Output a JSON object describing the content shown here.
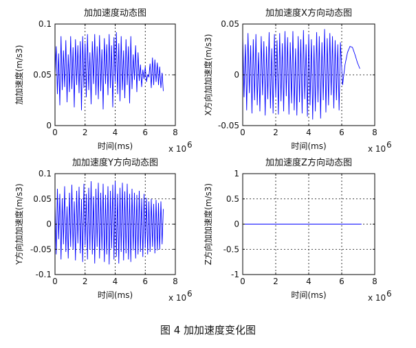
{
  "figure": {
    "caption": "图 4  加加速度变化图",
    "line_color": "#0000ff",
    "axis_color": "#000000",
    "grid_style": "dashed",
    "x_multiplier_base": "x 10",
    "x_multiplier_exp": "6"
  },
  "chart_data": [
    {
      "type": "line",
      "title": "加加速度动态图",
      "xlabel": "时间(ms)",
      "ylabel": "加加速度(m/s3)",
      "xlim": [
        0,
        8
      ],
      "ylim": [
        0,
        0.1
      ],
      "xticks": [
        0,
        2,
        4,
        6,
        8
      ],
      "yticks": [
        0,
        0.05,
        0.1
      ],
      "xtick_labels": [
        "0",
        "2",
        "4",
        "6",
        "8"
      ],
      "ytick_labels": [
        "0",
        "0.05",
        "0.1"
      ],
      "grid": true,
      "series": [
        {
          "x": [
            0.0,
            0.08,
            0.16,
            0.24,
            0.32,
            0.4,
            0.48,
            0.56,
            0.64,
            0.72,
            0.8,
            0.88,
            0.96,
            1.04,
            1.12,
            1.2,
            1.28,
            1.36,
            1.44,
            1.52,
            1.6,
            1.68,
            1.76,
            1.84,
            1.92,
            2.0,
            2.08,
            2.16,
            2.24,
            2.32,
            2.4,
            2.48,
            2.56,
            2.64,
            2.72,
            2.8,
            2.88,
            2.96,
            3.04,
            3.12,
            3.2,
            3.28,
            3.36,
            3.44,
            3.52,
            3.6,
            3.68,
            3.76,
            3.84,
            3.92,
            4.0,
            4.08,
            4.16,
            4.24,
            4.32,
            4.4,
            4.48,
            4.56,
            4.64,
            4.72,
            4.8,
            4.88,
            4.96,
            5.04,
            5.12,
            5.2,
            5.28,
            5.36,
            5.44,
            5.52,
            5.6,
            5.68,
            5.76,
            5.84,
            5.92,
            6.0,
            6.08,
            6.16,
            6.24,
            6.32,
            6.4,
            6.48,
            6.56,
            6.64,
            6.72,
            6.8,
            6.88,
            6.96,
            7.04,
            7.12,
            7.2
          ],
          "y": [
            0.05,
            0.078,
            0.031,
            0.071,
            0.02,
            0.088,
            0.035,
            0.074,
            0.038,
            0.084,
            0.023,
            0.07,
            0.033,
            0.088,
            0.036,
            0.077,
            0.018,
            0.085,
            0.04,
            0.079,
            0.032,
            0.083,
            0.015,
            0.088,
            0.037,
            0.081,
            0.028,
            0.09,
            0.035,
            0.072,
            0.021,
            0.083,
            0.041,
            0.09,
            0.03,
            0.078,
            0.026,
            0.089,
            0.034,
            0.075,
            0.016,
            0.086,
            0.041,
            0.08,
            0.03,
            0.09,
            0.037,
            0.079,
            0.018,
            0.087,
            0.043,
            0.092,
            0.031,
            0.081,
            0.024,
            0.088,
            0.035,
            0.074,
            0.027,
            0.085,
            0.04,
            0.078,
            0.022,
            0.088,
            0.036,
            0.07,
            0.045,
            0.079,
            0.033,
            0.072,
            0.044,
            0.06,
            0.038,
            0.055,
            0.046,
            0.058,
            0.043,
            0.05,
            0.048,
            0.061,
            0.037,
            0.067,
            0.04,
            0.065,
            0.043,
            0.062,
            0.04,
            0.058,
            0.037,
            0.052,
            0.034
          ]
        }
      ]
    },
    {
      "type": "line",
      "title": "加加速度X方向动态图",
      "xlabel": "时间(ms)",
      "ylabel": "X方向加加速度(m/s3)",
      "xlim": [
        0,
        8
      ],
      "ylim": [
        -0.05,
        0.05
      ],
      "xticks": [
        0,
        2,
        4,
        6,
        8
      ],
      "yticks": [
        -0.05,
        0,
        0.05
      ],
      "xtick_labels": [
        "0",
        "2",
        "4",
        "6",
        "8"
      ],
      "ytick_labels": [
        "-0.05",
        "0",
        "0.05"
      ],
      "grid": true,
      "series": [
        {
          "x": [
            0.0,
            0.08,
            0.16,
            0.24,
            0.32,
            0.4,
            0.48,
            0.56,
            0.64,
            0.72,
            0.8,
            0.88,
            0.96,
            1.04,
            1.12,
            1.2,
            1.28,
            1.36,
            1.44,
            1.52,
            1.6,
            1.68,
            1.76,
            1.84,
            1.92,
            2.0,
            2.08,
            2.16,
            2.24,
            2.32,
            2.4,
            2.48,
            2.56,
            2.64,
            2.72,
            2.8,
            2.88,
            2.96,
            3.04,
            3.12,
            3.2,
            3.28,
            3.36,
            3.44,
            3.52,
            3.6,
            3.68,
            3.76,
            3.84,
            3.92,
            4.0,
            4.08,
            4.16,
            4.24,
            4.32,
            4.4,
            4.48,
            4.56,
            4.64,
            4.72,
            4.8,
            4.88,
            4.96,
            5.04,
            5.12,
            5.2,
            5.28,
            5.36,
            5.44,
            5.52,
            5.6,
            5.68,
            5.76,
            5.84,
            5.92,
            6.05,
            6.2,
            6.35,
            6.5,
            6.65,
            6.8,
            6.95,
            7.1
          ],
          "y": [
            0.038,
            -0.022,
            0.03,
            -0.035,
            0.041,
            -0.018,
            0.029,
            -0.038,
            0.035,
            -0.025,
            0.04,
            -0.03,
            0.022,
            -0.036,
            0.038,
            -0.02,
            0.033,
            -0.04,
            0.028,
            -0.024,
            0.042,
            -0.033,
            0.026,
            -0.038,
            0.04,
            -0.022,
            0.034,
            -0.039,
            0.041,
            -0.026,
            0.031,
            -0.036,
            0.043,
            -0.021,
            0.037,
            -0.039,
            0.032,
            -0.028,
            0.043,
            -0.035,
            0.026,
            -0.04,
            0.038,
            -0.027,
            0.035,
            -0.038,
            0.044,
            -0.024,
            0.03,
            -0.041,
            0.04,
            -0.03,
            0.035,
            -0.044,
            0.029,
            -0.036,
            0.042,
            -0.027,
            0.038,
            -0.043,
            0.032,
            -0.025,
            0.045,
            -0.037,
            0.036,
            -0.03,
            0.041,
            -0.02,
            0.038,
            -0.033,
            0.034,
            -0.025,
            0.03,
            -0.035,
            0.032,
            -0.01,
            0.01,
            0.022,
            0.028,
            0.027,
            0.02,
            0.012,
            0.006
          ]
        }
      ]
    },
    {
      "type": "line",
      "title": "加加速度Y方向动态图",
      "xlabel": "时间(ms)",
      "ylabel": "Y方向加加速度(m/s3)",
      "xlim": [
        0,
        8
      ],
      "ylim": [
        -0.1,
        0.1
      ],
      "xticks": [
        0,
        2,
        4,
        6,
        8
      ],
      "yticks": [
        -0.1,
        -0.05,
        0,
        0.05,
        0.1
      ],
      "xtick_labels": [
        "0",
        "2",
        "4",
        "6",
        "8"
      ],
      "ytick_labels": [
        "-0.1",
        "-0.05",
        "0",
        "0.05",
        "0.1"
      ],
      "grid": true,
      "series": [
        {
          "x": [
            0.0,
            0.08,
            0.16,
            0.24,
            0.32,
            0.4,
            0.48,
            0.56,
            0.64,
            0.72,
            0.8,
            0.88,
            0.96,
            1.04,
            1.12,
            1.2,
            1.28,
            1.36,
            1.44,
            1.52,
            1.6,
            1.68,
            1.76,
            1.84,
            1.92,
            2.0,
            2.08,
            2.16,
            2.24,
            2.32,
            2.4,
            2.48,
            2.56,
            2.64,
            2.72,
            2.8,
            2.88,
            2.96,
            3.04,
            3.12,
            3.2,
            3.28,
            3.36,
            3.44,
            3.52,
            3.6,
            3.68,
            3.76,
            3.84,
            3.92,
            4.0,
            4.08,
            4.16,
            4.24,
            4.32,
            4.4,
            4.48,
            4.56,
            4.64,
            4.72,
            4.8,
            4.88,
            4.96,
            5.04,
            5.12,
            5.2,
            5.28,
            5.36,
            5.44,
            5.52,
            5.6,
            5.68,
            5.76,
            5.84,
            5.92,
            6.0,
            6.08,
            6.16,
            6.24,
            6.32,
            6.4,
            6.48,
            6.56,
            6.64,
            6.72,
            6.8,
            6.88,
            6.96,
            7.04,
            7.12,
            7.2
          ],
          "y": [
            0.04,
            -0.06,
            0.07,
            -0.03,
            0.06,
            -0.07,
            0.05,
            -0.04,
            0.075,
            -0.055,
            0.035,
            -0.068,
            0.062,
            -0.045,
            0.078,
            -0.05,
            0.045,
            -0.072,
            0.066,
            -0.038,
            0.074,
            -0.058,
            0.05,
            -0.075,
            0.08,
            -0.042,
            0.06,
            -0.07,
            0.072,
            -0.05,
            0.085,
            -0.06,
            0.055,
            -0.078,
            0.07,
            -0.045,
            0.082,
            -0.068,
            0.062,
            -0.052,
            0.08,
            -0.075,
            0.058,
            -0.06,
            0.075,
            -0.08,
            0.066,
            -0.048,
            0.078,
            -0.07,
            0.085,
            -0.065,
            0.06,
            -0.078,
            0.072,
            -0.055,
            0.082,
            -0.072,
            0.065,
            -0.058,
            0.08,
            -0.07,
            0.06,
            -0.075,
            0.07,
            -0.052,
            0.062,
            -0.068,
            0.058,
            -0.06,
            0.066,
            -0.055,
            0.05,
            -0.065,
            0.06,
            -0.048,
            0.052,
            -0.06,
            0.045,
            -0.055,
            0.05,
            -0.045,
            0.04,
            -0.058,
            0.048,
            -0.052,
            0.042,
            -0.05,
            0.045,
            -0.04,
            0.03
          ]
        }
      ]
    },
    {
      "type": "line",
      "title": "加加速度Z方向动态图",
      "xlabel": "时间(ms)",
      "ylabel": "Z方向加加速度(m/s3)",
      "xlim": [
        0,
        8
      ],
      "ylim": [
        -1,
        1
      ],
      "xticks": [
        0,
        2,
        4,
        6,
        8
      ],
      "yticks": [
        -1,
        -0.5,
        0,
        0.5,
        1
      ],
      "xtick_labels": [
        "0",
        "2",
        "4",
        "6",
        "8"
      ],
      "ytick_labels": [
        "-1",
        "-0.5",
        "0",
        "0.5",
        "1"
      ],
      "grid": true,
      "series": [
        {
          "x": [
            0,
            7.2
          ],
          "y": [
            0,
            0
          ]
        }
      ]
    }
  ]
}
